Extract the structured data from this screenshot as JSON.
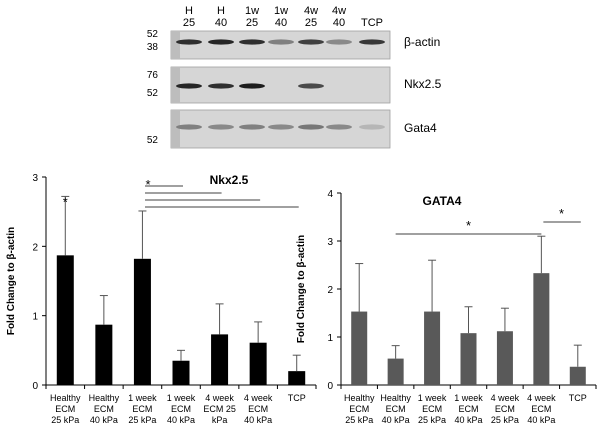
{
  "blot": {
    "lanes": [
      {
        "top": "H",
        "bottom": "25"
      },
      {
        "top": "H",
        "bottom": "40"
      },
      {
        "top": "1w",
        "bottom": "25"
      },
      {
        "top": "1w",
        "bottom": "40"
      },
      {
        "top": "4w",
        "bottom": "25"
      },
      {
        "top": "4w",
        "bottom": "40"
      },
      {
        "top": "",
        "bottom": "TCP"
      }
    ],
    "panels": [
      {
        "protein": "β-actin",
        "markers": [
          "52",
          "38"
        ],
        "intensity": [
          0.85,
          0.9,
          0.85,
          0.4,
          0.75,
          0.35,
          0.8
        ]
      },
      {
        "protein": "Nkx2.5",
        "markers": [
          "76",
          "52"
        ],
        "intensity": [
          0.9,
          0.85,
          0.95,
          0.0,
          0.7,
          0.0,
          0.0
        ]
      },
      {
        "protein": "Gata4",
        "markers": [
          "52"
        ],
        "intensity": [
          0.4,
          0.35,
          0.4,
          0.35,
          0.45,
          0.35,
          0.1
        ]
      }
    ]
  },
  "chart_data": [
    {
      "type": "bar",
      "title": "Nkx2.5",
      "ylabel": "Fold Change to β-actin",
      "ylim": [
        0,
        3
      ],
      "yticks": [
        "0",
        "1",
        "2",
        "3"
      ],
      "color": "#000000",
      "categories": [
        [
          "Healthy",
          "ECM",
          "25 kPa"
        ],
        [
          "Healthy",
          "ECM",
          "40 kPa"
        ],
        [
          "1 week",
          "ECM",
          "25 kPa"
        ],
        [
          "1 week",
          "ECM",
          "40 kPa"
        ],
        [
          "4 week",
          "ECM   25",
          "kPa"
        ],
        [
          "4 week",
          "ECM",
          "40 kPa"
        ],
        [
          "TCP"
        ]
      ],
      "values": [
        1.87,
        0.87,
        1.82,
        0.35,
        0.73,
        0.61,
        0.2
      ],
      "errors": [
        0.85,
        0.42,
        0.69,
        0.15,
        0.44,
        0.3,
        0.23
      ],
      "annotations": [
        "*",
        "*"
      ]
    },
    {
      "type": "bar",
      "title": "GATA4",
      "ylabel": "Fold Change to β-actin",
      "ylim": [
        0,
        4
      ],
      "yticks": [
        "0",
        "1",
        "2",
        "3",
        "4"
      ],
      "color": "#595959",
      "categories": [
        [
          "Healthy",
          "ECM",
          "25 kPa"
        ],
        [
          "Healthy",
          "ECM",
          "40 kPa"
        ],
        [
          "1 week",
          "ECM",
          "25 kPa"
        ],
        [
          "1 week",
          "ECM",
          "40 kPa"
        ],
        [
          "4 week",
          "ECM",
          "25 kPa"
        ],
        [
          "4 week",
          "ECM",
          "40 kPa"
        ],
        [
          "TCP"
        ]
      ],
      "values": [
        1.53,
        0.55,
        1.53,
        1.08,
        1.12,
        2.33,
        0.38
      ],
      "errors": [
        1.0,
        0.27,
        1.07,
        0.55,
        0.48,
        0.77,
        0.45
      ],
      "annotations": [
        "*",
        "*"
      ]
    }
  ]
}
